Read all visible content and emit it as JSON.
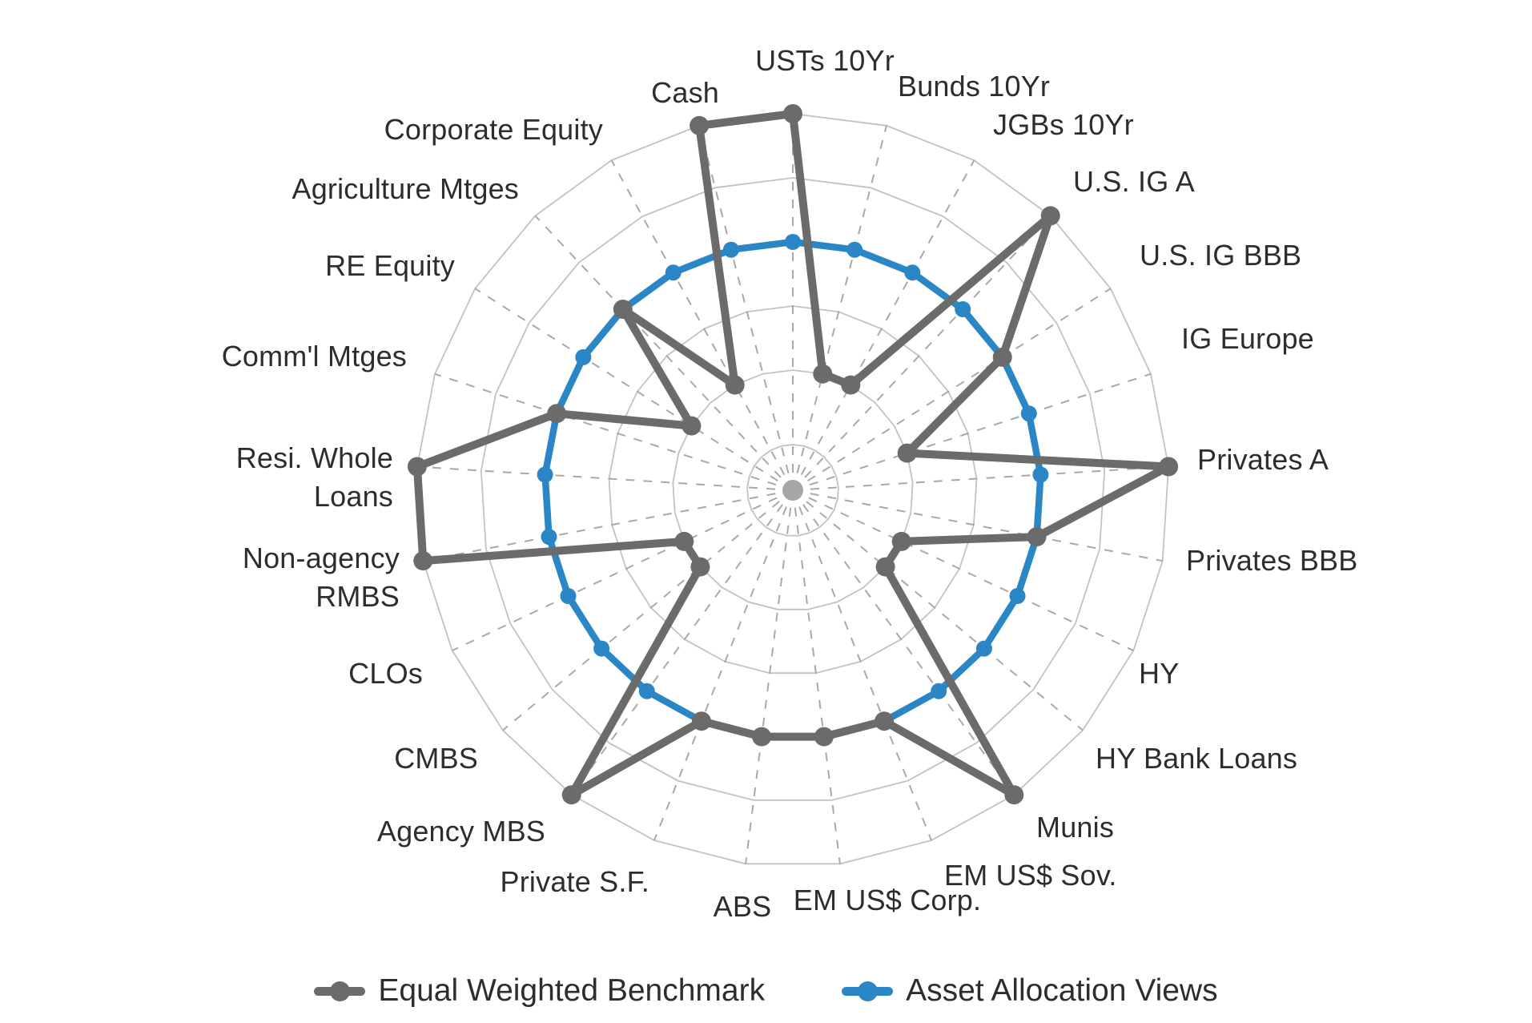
{
  "page": {
    "background": "#ffffff"
  },
  "chart_data": {
    "type": "radar",
    "title": "",
    "axes_count": 25,
    "ring_count": 6,
    "value_max": 6,
    "grid": "on",
    "legend_position": "bottom",
    "colors": {
      "rings": "#c2c2c2",
      "spokes": "#a9a9a9",
      "center_dot": "#a6a6a6",
      "label": "#2d2d2d",
      "benchmark": "#6b6b6b",
      "views": "#2b86c5"
    },
    "axes": [
      {
        "label": "USTs 10Yr",
        "lines": [
          "USTs 10Yr"
        ]
      },
      {
        "label": "Bunds 10Yr",
        "lines": [
          "Bunds 10Yr"
        ]
      },
      {
        "label": "JGBs 10Yr",
        "lines": [
          "JGBs 10Yr"
        ]
      },
      {
        "label": "U.S. IG A",
        "lines": [
          "U.S. IG A"
        ]
      },
      {
        "label": "U.S. IG BBB",
        "lines": [
          "U.S. IG BBB"
        ]
      },
      {
        "label": "IG Europe",
        "lines": [
          "IG Europe"
        ]
      },
      {
        "label": "Privates A",
        "lines": [
          "Privates A"
        ]
      },
      {
        "label": "Privates BBB",
        "lines": [
          "Privates BBB"
        ]
      },
      {
        "label": "HY",
        "lines": [
          "HY"
        ]
      },
      {
        "label": "HY Bank Loans",
        "lines": [
          "HY Bank Loans"
        ]
      },
      {
        "label": "Munis",
        "lines": [
          "Munis"
        ]
      },
      {
        "label": "EM US$ Sov.",
        "lines": [
          "EM US$ Sov."
        ]
      },
      {
        "label": "EM US$ Corp.",
        "lines": [
          "EM US$ Corp."
        ]
      },
      {
        "label": "ABS",
        "lines": [
          "ABS"
        ]
      },
      {
        "label": "Private S.F.",
        "lines": [
          "Private S.F."
        ]
      },
      {
        "label": "Agency MBS",
        "lines": [
          "Agency MBS"
        ]
      },
      {
        "label": "CMBS",
        "lines": [
          "CMBS"
        ]
      },
      {
        "label": "CLOs",
        "lines": [
          "CLOs"
        ]
      },
      {
        "label": "Non-agency RMBS",
        "lines": [
          "Non-agency",
          "RMBS"
        ]
      },
      {
        "label": "Resi. Whole Loans",
        "lines": [
          "Resi. Whole",
          "Loans"
        ]
      },
      {
        "label": "Comm'l Mtges",
        "lines": [
          "Comm'l Mtges"
        ]
      },
      {
        "label": "RE Equity",
        "lines": [
          "RE Equity"
        ]
      },
      {
        "label": "Agriculture Mtges",
        "lines": [
          "Agriculture Mtges"
        ]
      },
      {
        "label": "Corporate Equity",
        "lines": [
          "Corporate Equity"
        ]
      },
      {
        "label": "Cash",
        "lines": [
          "Cash"
        ]
      }
    ],
    "series": [
      {
        "name": "Equal Weighted Benchmark",
        "color": "#6b6b6b",
        "marker": "circle",
        "values": [
          6,
          2,
          2,
          6,
          4,
          2,
          6,
          4,
          2,
          2,
          6,
          4,
          4,
          4,
          4,
          6,
          2,
          2,
          6,
          6,
          4,
          2,
          4,
          2,
          6
        ]
      },
      {
        "name": "Asset Allocation Views",
        "color": "#2b86c5",
        "marker": "circle",
        "values": [
          4,
          4,
          4,
          4,
          4,
          4,
          4,
          4,
          4,
          4,
          4,
          4,
          4,
          4,
          4,
          4,
          4,
          4,
          4,
          4,
          4,
          4,
          4,
          4,
          4
        ]
      }
    ]
  },
  "legend": {
    "items": [
      {
        "label": "Equal Weighted Benchmark",
        "color": "#6b6b6b"
      },
      {
        "label": "Asset Allocation Views",
        "color": "#2b86c5"
      }
    ]
  }
}
